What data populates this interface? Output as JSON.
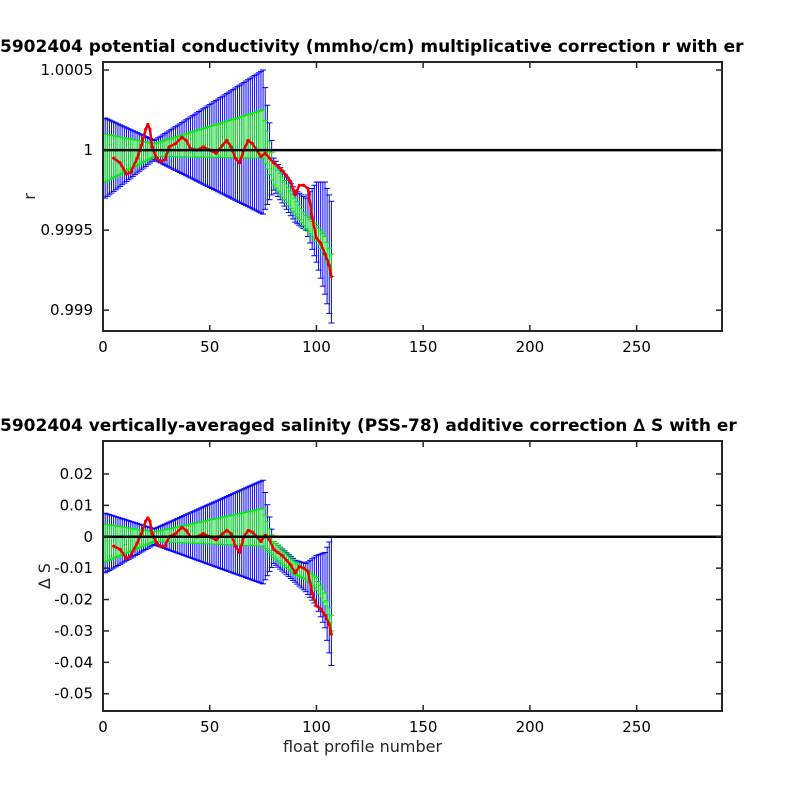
{
  "chart_data": [
    {
      "type": "line",
      "title": "5902404 potential conductivity (mmho/cm) multiplicative correction r with er",
      "xlabel": "",
      "ylabel": "r",
      "xlim": [
        0,
        290
      ],
      "ylim": [
        0.99887,
        1.00055
      ],
      "xticks": [
        0,
        50,
        100,
        150,
        200,
        250
      ],
      "xtick_labels": [
        "0",
        "50",
        "100",
        "150",
        "200",
        "250"
      ],
      "yticks": [
        0.999,
        0.9995,
        1,
        1.0005
      ],
      "ytick_labels": [
        "0.999",
        "0.9995",
        "1",
        "1.0005"
      ],
      "reference_line": {
        "y": 1,
        "color": "#000000"
      },
      "series": [
        {
          "color": "#0000ff",
          "kind": "errorbar",
          "x": [
            1,
            24,
            75,
            80,
            90,
            95,
            100,
            104,
            107
          ],
          "center": [
            0.99995,
            1.0,
            1.00005,
            0.99985,
            0.99965,
            0.9996,
            0.99955,
            0.99945,
            0.9993
          ],
          "half_width": [
            0.00025,
            6e-05,
            0.00045,
            0.0001,
            0.0001,
            0.0001,
            0.00025,
            0.00035,
            0.00038
          ]
        },
        {
          "color": "#00ee00",
          "kind": "errorbar",
          "x": [
            1,
            24,
            75,
            80,
            90,
            95,
            100,
            104,
            107
          ],
          "center": [
            0.99995,
            1.0,
            1.0001,
            0.99985,
            0.99965,
            0.99955,
            0.99948,
            0.9994,
            0.99928
          ],
          "half_width": [
            0.00015,
            4e-05,
            0.00015,
            7e-05,
            5e-05,
            4e-05,
            5e-05,
            6e-05,
            7e-05
          ]
        },
        {
          "color": "#ee0000",
          "kind": "line",
          "x": [
            5,
            8,
            11,
            13,
            16,
            18,
            20,
            21,
            22,
            23,
            25,
            27,
            29,
            31,
            34,
            37,
            39,
            41,
            44,
            47,
            50,
            53,
            56,
            58,
            60,
            62,
            64,
            66,
            68,
            70,
            72,
            74,
            76,
            78,
            80,
            82,
            84,
            86,
            88,
            90,
            92,
            94,
            96,
            98,
            100,
            102,
            104,
            106,
            107
          ],
          "y": [
            0.99995,
            0.99992,
            0.99985,
            0.99986,
            0.99995,
            1.00003,
            1.00013,
            1.00016,
            1.00013,
            1.00002,
            0.99995,
            0.99993,
            0.99994,
            1.00002,
            1.00004,
            1.00008,
            1.00006,
            1.00001,
            1.0,
            1.00002,
            1.0,
            0.99998,
            1.00003,
            1.00006,
            1.00002,
            0.99995,
            0.99992,
            1.0,
            1.00006,
            1.00004,
            1.0,
            0.99996,
            0.99998,
            0.99995,
            0.99992,
            0.9999,
            0.99987,
            0.99984,
            0.9998,
            0.99972,
            0.99978,
            0.99978,
            0.99976,
            0.99958,
            0.99945,
            0.99942,
            0.99935,
            0.99928,
            0.99921
          ]
        }
      ]
    },
    {
      "type": "line",
      "title": "5902404 vertically-averaged salinity (PSS-78) additive correction ∆ S with er",
      "xlabel": "float profile number",
      "ylabel": "∆ S",
      "xlim": [
        0,
        290
      ],
      "ylim": [
        -0.0555,
        0.0305
      ],
      "xticks": [
        0,
        50,
        100,
        150,
        200,
        250
      ],
      "xtick_labels": [
        "0",
        "50",
        "100",
        "150",
        "200",
        "250"
      ],
      "yticks": [
        -0.05,
        -0.04,
        -0.03,
        -0.02,
        -0.01,
        0,
        0.01,
        0.02
      ],
      "ytick_labels": [
        "-0.05",
        "-0.04",
        "-0.03",
        "-0.02",
        "-0.01",
        "0",
        "0.01",
        "0.02"
      ],
      "reference_line": {
        "y": 0,
        "color": "#000000"
      },
      "series": [
        {
          "color": "#0000ff",
          "kind": "errorbar",
          "x": [
            1,
            24,
            75,
            80,
            90,
            95,
            100,
            104,
            107
          ],
          "center": [
            -0.002,
            0.0,
            0.0015,
            -0.005,
            -0.011,
            -0.013,
            -0.014,
            -0.017,
            -0.0205
          ],
          "half_width": [
            0.0095,
            0.0025,
            0.0165,
            0.0035,
            0.0035,
            0.0045,
            0.008,
            0.012,
            0.0205
          ]
        },
        {
          "color": "#00ee00",
          "kind": "errorbar",
          "x": [
            1,
            24,
            75,
            80,
            90,
            95,
            100,
            104,
            107
          ],
          "center": [
            -0.002,
            0.0,
            0.003,
            -0.004,
            -0.01,
            -0.012,
            -0.015,
            -0.02,
            -0.0275
          ],
          "half_width": [
            0.006,
            0.0015,
            0.006,
            0.0025,
            0.002,
            0.0015,
            0.002,
            0.002,
            0.0025
          ]
        },
        {
          "color": "#ee0000",
          "kind": "line",
          "x": [
            5,
            8,
            11,
            13,
            16,
            18,
            20,
            21,
            22,
            23,
            25,
            27,
            29,
            31,
            34,
            37,
            39,
            41,
            44,
            47,
            50,
            53,
            56,
            58,
            60,
            62,
            64,
            66,
            68,
            70,
            72,
            74,
            76,
            78,
            80,
            82,
            84,
            86,
            88,
            90,
            92,
            94,
            96,
            98,
            100,
            102,
            104,
            106,
            107
          ],
          "y": [
            -0.003,
            -0.004,
            -0.007,
            -0.006,
            -0.002,
            0.001,
            0.005,
            0.006,
            0.005,
            0.001,
            -0.002,
            -0.003,
            -0.003,
            0.0,
            0.001,
            0.003,
            0.002,
            0.0,
            0.0,
            0.001,
            0.0,
            -0.001,
            0.001,
            0.002,
            0.001,
            -0.003,
            -0.005,
            0.0,
            0.002,
            0.0015,
            0.0,
            -0.0015,
            0.0005,
            -0.001,
            -0.004,
            -0.005,
            -0.006,
            -0.0075,
            -0.009,
            -0.0115,
            -0.0095,
            -0.01,
            -0.011,
            -0.018,
            -0.022,
            -0.023,
            -0.025,
            -0.028,
            -0.031
          ]
        }
      ]
    }
  ]
}
